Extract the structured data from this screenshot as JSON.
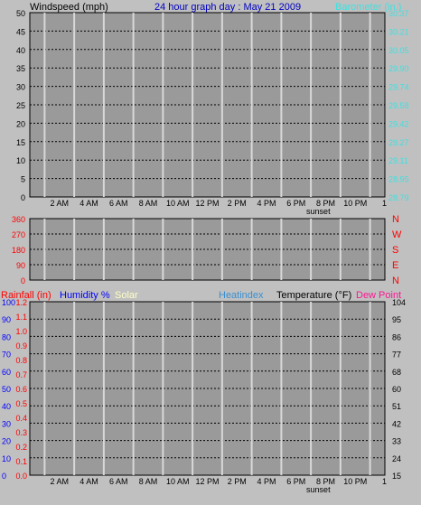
{
  "panel1": {
    "left_label": "Windspeed (mph)",
    "title": "24 hour graph day : May 21 2009",
    "right_label": "Barometer (in.)",
    "left_ticks": [
      "50",
      "45",
      "40",
      "35",
      "30",
      "25",
      "20",
      "15",
      "10",
      "5",
      "0"
    ],
    "right_ticks": [
      "30.37",
      "30.21",
      "30.05",
      "29.90",
      "29.74",
      "29.58",
      "29.42",
      "29.27",
      "29.11",
      "28.95",
      "28.79"
    ]
  },
  "panel2": {
    "left_ticks": [
      "360",
      "270",
      "180",
      "90",
      "0"
    ],
    "right_letters": [
      "N",
      "W",
      "S",
      "E",
      "N"
    ]
  },
  "panel3": {
    "label_rainfall": "Rainfall (in)",
    "label_humidity": "Humidity %",
    "label_solar": "Solar",
    "label_heatindex": "Heatindex",
    "label_temperature": "Temperature (°F)",
    "label_dewpoint": "Dew Point",
    "pct_ticks": [
      "100",
      "90",
      "80",
      "70",
      "60",
      "50",
      "40",
      "30",
      "20",
      "10",
      "0"
    ],
    "rain_ticks": [
      "1.2",
      "1.1",
      "1.0",
      "0.9",
      "0.8",
      "0.7",
      "0.6",
      "0.5",
      "0.4",
      "0.3",
      "0.2",
      "0.1",
      "0.0"
    ],
    "temp_ticks": [
      "104",
      "95",
      "86",
      "77",
      "68",
      "60",
      "51",
      "42",
      "33",
      "24",
      "15"
    ]
  },
  "time_labels": [
    "2 AM",
    "4 AM",
    "6 AM",
    "8 AM",
    "10 AM",
    "12 PM",
    "2 PM",
    "4 PM",
    "6 PM",
    "8 PM",
    "10 PM"
  ],
  "sunset_label": "sunset",
  "colors": {
    "background": "#c0c0c0",
    "plot": "#9a9a9a",
    "grid": "#d8d8d8",
    "wind_gust": "#000000",
    "wind_avg": "#0000ff",
    "wind_min": "#707070",
    "barometer": "#40e0e0",
    "direction": "#ff0000",
    "humidity": "#0000ff",
    "temperature": "#000000",
    "heatindex": "#3a8fd0",
    "dewpoint": "#ff1493",
    "solar": "#ffffc8",
    "rainfall": "#ff0000"
  }
}
